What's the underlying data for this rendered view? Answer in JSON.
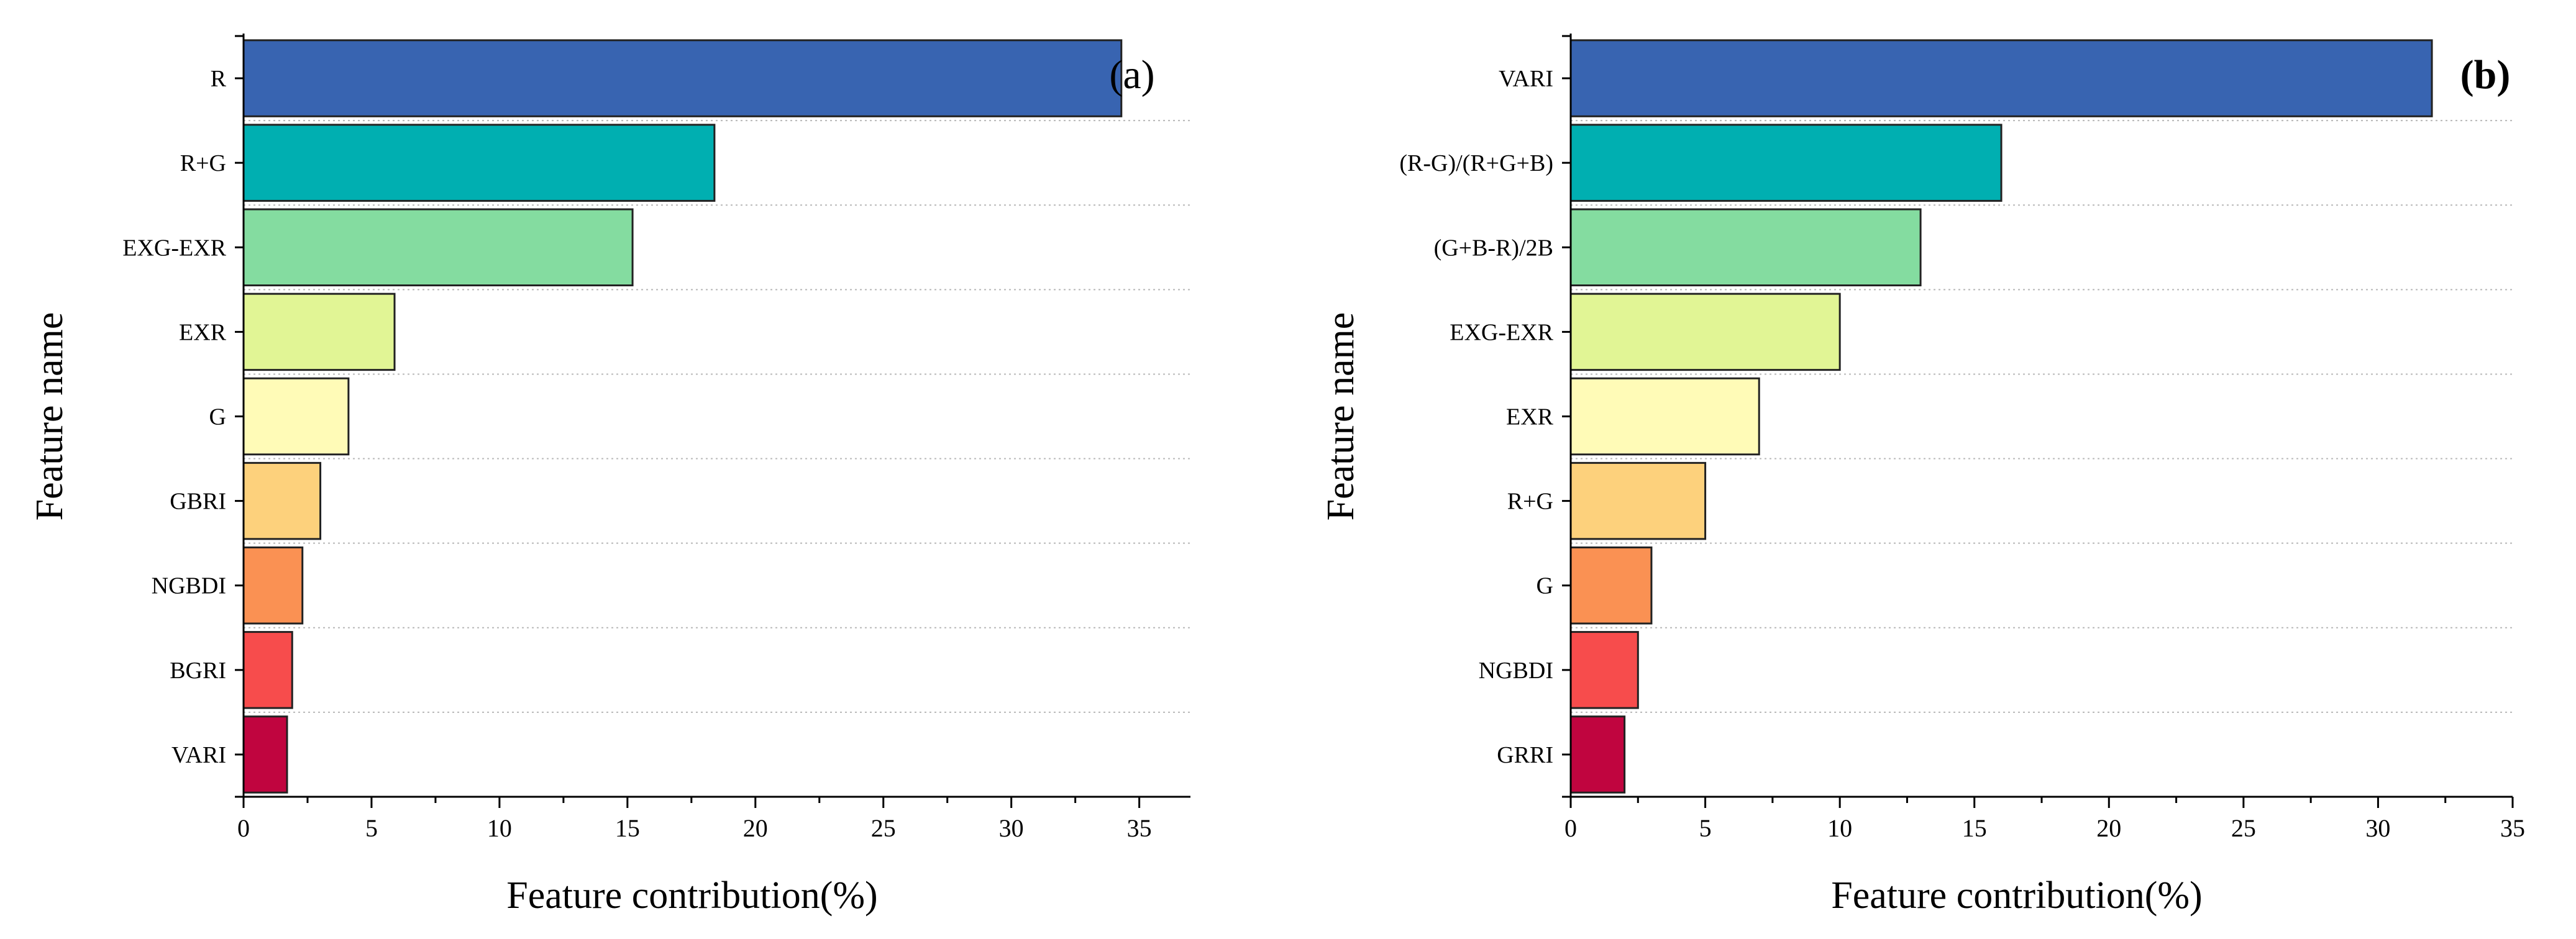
{
  "chart_data": [
    {
      "type": "bar",
      "orientation": "horizontal",
      "panel_label": "(a)",
      "categories": [
        "R",
        "R+G",
        "EXG-EXR",
        "EXR",
        "G",
        "GBRI",
        "NGBDI",
        "BGRI",
        "VARI"
      ],
      "values": [
        34.3,
        18.4,
        15.2,
        5.9,
        4.1,
        3.0,
        2.3,
        1.9,
        1.7
      ],
      "colors": [
        "#3864B1",
        "#00AFB1",
        "#84DCA0",
        "#E1F595",
        "#FFFBB7",
        "#FDD17C",
        "#FA9153",
        "#F74C4C",
        "#C0053F"
      ],
      "xlabel": "Feature contribution(%)",
      "ylabel": "Feature name",
      "xlim": [
        0,
        37
      ],
      "xticks": [
        0,
        5,
        10,
        15,
        20,
        25,
        30,
        35
      ]
    },
    {
      "type": "bar",
      "orientation": "horizontal",
      "panel_label": "(b)",
      "categories": [
        "VARI",
        "(R-G)/(R+G+B)",
        "(G+B-R)/2B",
        "EXG-EXR",
        "EXR",
        "R+G",
        "G",
        "NGBDI",
        "GRRI"
      ],
      "values": [
        32.0,
        16.0,
        13.0,
        10.0,
        7.0,
        5.0,
        3.0,
        2.5,
        2.0
      ],
      "colors": [
        "#3864B1",
        "#00AFB1",
        "#84DCA0",
        "#E1F595",
        "#FFFBB7",
        "#FDD17C",
        "#FA9153",
        "#F74C4C",
        "#C0053F"
      ],
      "xlabel": "Feature contribution(%)",
      "ylabel": "Feature name",
      "xlim": [
        0,
        35
      ],
      "xticks": [
        0,
        5,
        10,
        15,
        20,
        25,
        30,
        35
      ]
    }
  ]
}
